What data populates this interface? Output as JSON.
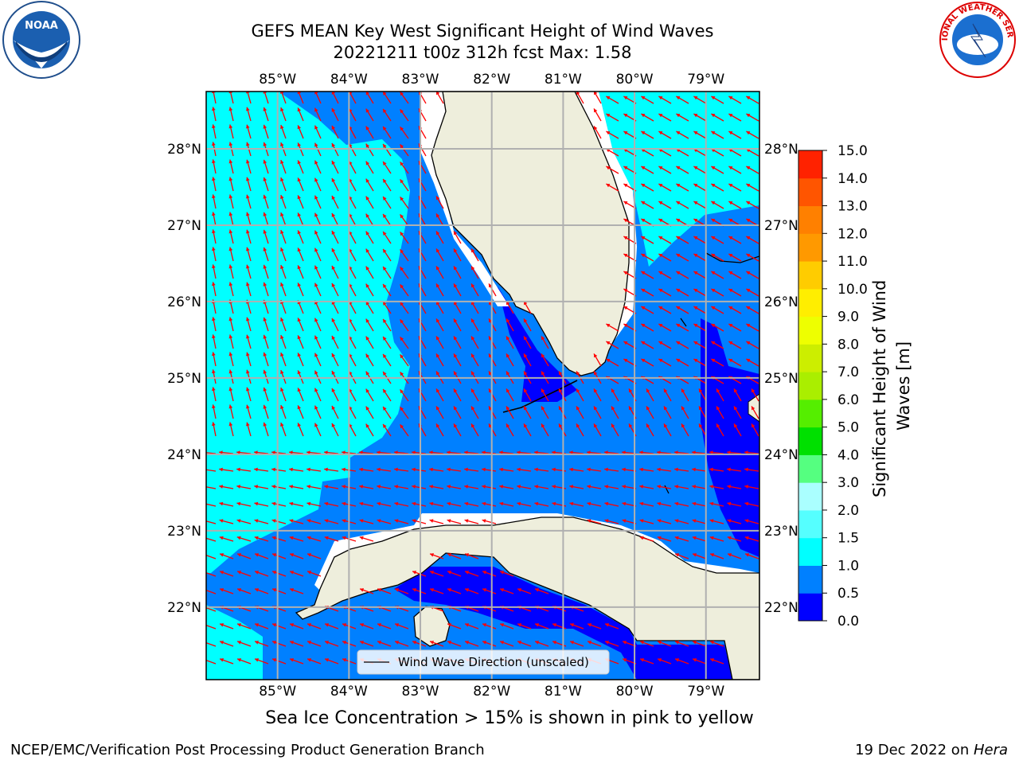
{
  "title": {
    "line1": "GEFS MEAN Key West Significant Height of Wind Waves",
    "line2": "20221211 t00z 312h fcst   Max: 1.58"
  },
  "chart_data": {
    "type": "map",
    "region": "Key West",
    "lon_ticks": [
      "85°W",
      "84°W",
      "83°W",
      "82°W",
      "81°W",
      "80°W",
      "79°W"
    ],
    "lat_ticks": [
      "28°N",
      "27°N",
      "26°N",
      "25°N",
      "24°N",
      "23°N",
      "22°N"
    ],
    "extent": {
      "lon": [
        -86.0,
        -78.25
      ],
      "lat": [
        21.05,
        28.75
      ]
    },
    "max_value": 1.58,
    "colorbar": {
      "label": "Significant Height of Wind Waves [m]",
      "label_lines": [
        "Significant Height of Wind",
        "Waves [m]"
      ],
      "levels": [
        0.0,
        0.5,
        1.0,
        1.5,
        2.0,
        3.0,
        4.0,
        5.0,
        6.0,
        7.0,
        8.0,
        9.0,
        10.0,
        11.0,
        12.0,
        13.0,
        14.0,
        15.0
      ],
      "tick_labels": [
        "0.0",
        "0.5",
        "1.0",
        "1.5",
        "2.0",
        "3.0",
        "4.0",
        "5.0",
        "6.0",
        "7.0",
        "8.0",
        "9.0",
        "10.0",
        "11.0",
        "12.0",
        "13.0",
        "14.0",
        "15.0"
      ],
      "colors": [
        "#0000ff",
        "#0080ff",
        "#00ffff",
        "#55ffff",
        "#aaffff",
        "#55ff80",
        "#00e000",
        "#55ee00",
        "#aaee00",
        "#ccee00",
        "#eeff00",
        "#ffee00",
        "#ffcc00",
        "#ff9900",
        "#ff8000",
        "#ff5500",
        "#ff2200"
      ]
    },
    "legend": {
      "label": "Wind Wave Direction (unscaled)",
      "placement": "lower-center"
    },
    "colors": {
      "land": "#eeeedc",
      "arrows": "#ff0000",
      "grid": "#b0b0b0"
    }
  },
  "sea_ice_note": "Sea Ice Concentration > 15% is shown in pink to yellow",
  "footer": {
    "credit": "NCEP/EMC/Verification Post Processing Product Generation Branch",
    "date": "19 Dec 2022 on ",
    "host": "Hera"
  },
  "logos": {
    "left": {
      "icon": "noaa-logo",
      "text": "NOAA"
    },
    "right": {
      "icon": "national-weather-service-logo",
      "text": "NATIONAL WEATHER SERVICE"
    }
  }
}
